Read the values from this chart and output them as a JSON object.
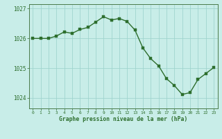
{
  "x": [
    0,
    1,
    2,
    3,
    4,
    5,
    6,
    7,
    8,
    9,
    10,
    11,
    12,
    13,
    14,
    15,
    16,
    17,
    18,
    19,
    20,
    21,
    22,
    23
  ],
  "y": [
    1026.0,
    1026.0,
    1026.0,
    1026.08,
    1026.22,
    1026.17,
    1026.3,
    1026.37,
    1026.55,
    1026.73,
    1026.62,
    1026.67,
    1026.57,
    1026.28,
    1025.68,
    1025.32,
    1025.08,
    1024.65,
    1024.42,
    1024.12,
    1024.18,
    1024.62,
    1024.82,
    1025.02
  ],
  "line_color": "#2d6e2d",
  "marker_color": "#2d6e2d",
  "background_color": "#c8ede8",
  "grid_color": "#a0d4ce",
  "tick_color": "#2d6e2d",
  "label_color": "#2d6e2d",
  "xlabel": "Graphe pression niveau de la mer (hPa)",
  "ylim": [
    1023.65,
    1027.15
  ],
  "yticks": [
    1024,
    1025,
    1026,
    1027
  ],
  "xticks": [
    0,
    1,
    2,
    3,
    4,
    5,
    6,
    7,
    8,
    9,
    10,
    11,
    12,
    13,
    14,
    15,
    16,
    17,
    18,
    19,
    20,
    21,
    22,
    23
  ],
  "marker_size": 2.5,
  "line_width": 1.0
}
